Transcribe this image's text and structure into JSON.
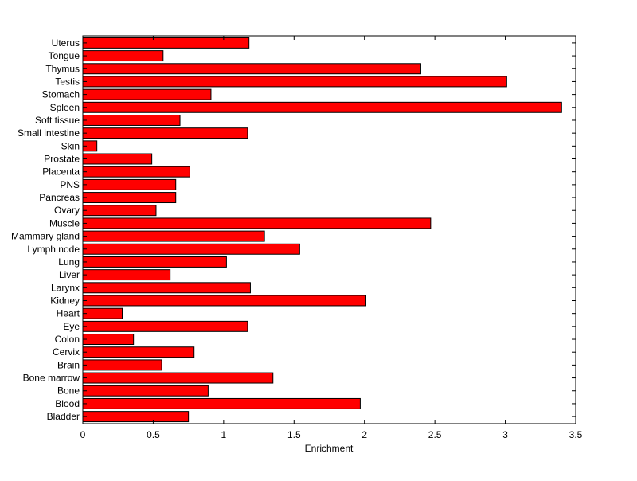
{
  "chart_data": {
    "type": "bar",
    "orientation": "horizontal",
    "title": "",
    "xlabel": "Enrichment",
    "ylabel": "",
    "xlim": [
      0,
      3.5
    ],
    "xticks": [
      0,
      0.5,
      1,
      1.5,
      2,
      2.5,
      3,
      3.5
    ],
    "xtick_labels": [
      "0",
      "0.5",
      "1",
      "1.5",
      "2",
      "2.5",
      "3",
      "3.5"
    ],
    "grid": false,
    "bar_color": "#ff0000",
    "categories": [
      "Bladder",
      "Blood",
      "Bone",
      "Bone marrow",
      "Brain",
      "Cervix",
      "Colon",
      "Eye",
      "Heart",
      "Kidney",
      "Larynx",
      "Liver",
      "Lung",
      "Lymph node",
      "Mammary gland",
      "Muscle",
      "Ovary",
      "Pancreas",
      "PNS",
      "Placenta",
      "Prostate",
      "Skin",
      "Small intestine",
      "Soft tissue",
      "Spleen",
      "Stomach",
      "Testis",
      "Thymus",
      "Tongue",
      "Uterus"
    ],
    "values": [
      0.75,
      1.97,
      0.89,
      1.35,
      0.56,
      0.79,
      0.36,
      1.17,
      0.28,
      2.01,
      1.19,
      0.62,
      1.02,
      1.54,
      1.29,
      2.47,
      0.52,
      0.66,
      0.66,
      0.76,
      0.49,
      0.1,
      1.17,
      0.69,
      3.4,
      0.91,
      3.01,
      2.4,
      0.57,
      1.18
    ]
  }
}
